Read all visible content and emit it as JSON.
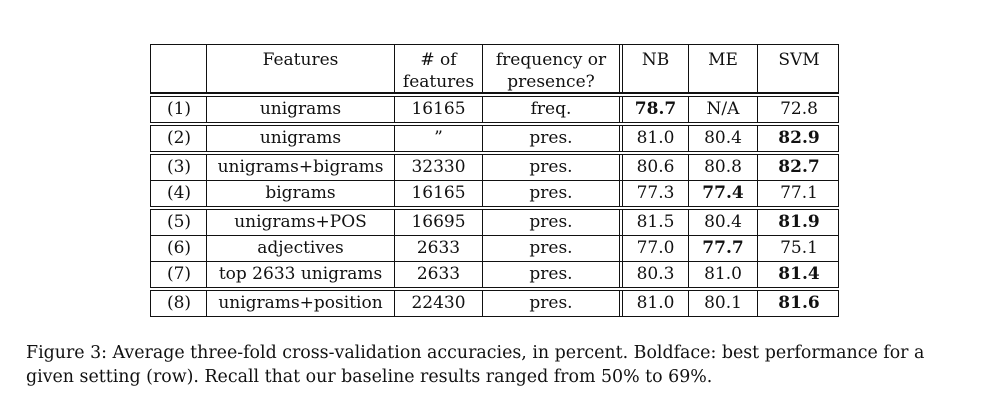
{
  "table": {
    "headers": {
      "index": "",
      "features": "Features",
      "num_features": "# of\nfeatures",
      "freq_presence": "frequency or\npresence?",
      "nb": "NB",
      "me": "ME",
      "svm": "SVM"
    },
    "rows": [
      {
        "index": "(1)",
        "features": "unigrams",
        "num": "16165",
        "fp": "freq.",
        "nb": "78.7",
        "me": "N/A",
        "svm": "72.8",
        "best": "nb"
      },
      {
        "index": "(2)",
        "features": "unigrams",
        "num": "”",
        "fp": "pres.",
        "nb": "81.0",
        "me": "80.4",
        "svm": "82.9",
        "best": "svm"
      },
      {
        "index": "(3)",
        "features": "unigrams+bigrams",
        "num": "32330",
        "fp": "pres.",
        "nb": "80.6",
        "me": "80.8",
        "svm": "82.7",
        "best": "svm"
      },
      {
        "index": "(4)",
        "features": "bigrams",
        "num": "16165",
        "fp": "pres.",
        "nb": "77.3",
        "me": "77.4",
        "svm": "77.1",
        "best": "me"
      },
      {
        "index": "(5)",
        "features": "unigrams+POS",
        "num": "16695",
        "fp": "pres.",
        "nb": "81.5",
        "me": "80.4",
        "svm": "81.9",
        "best": "svm"
      },
      {
        "index": "(6)",
        "features": "adjectives",
        "num": "2633",
        "fp": "pres.",
        "nb": "77.0",
        "me": "77.7",
        "svm": "75.1",
        "best": "me"
      },
      {
        "index": "(7)",
        "features": "top 2633 unigrams",
        "num": "2633",
        "fp": "pres.",
        "nb": "80.3",
        "me": "81.0",
        "svm": "81.4",
        "best": "svm"
      },
      {
        "index": "(8)",
        "features": "unigrams+position",
        "num": "22430",
        "fp": "pres.",
        "nb": "81.0",
        "me": "80.1",
        "svm": "81.6",
        "best": "svm"
      }
    ]
  },
  "caption": "Figure 3: Average three-fold cross-validation accuracies, in percent. Boldface: best performance for a given setting (row). Recall that our baseline results ranged from 50% to 69%."
}
